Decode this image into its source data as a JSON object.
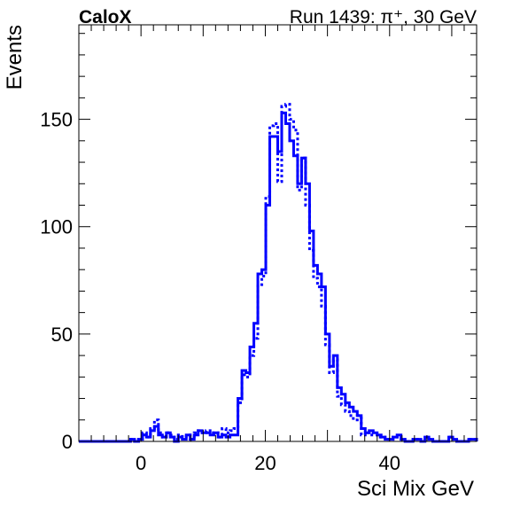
{
  "chart_data": {
    "type": "histogram",
    "title_left": "CaloX",
    "title_right": "Run 1439: π⁺, 30 GeV",
    "xlabel": "Sci Mix GeV",
    "ylabel": "Events",
    "xlim": [
      -10,
      54
    ],
    "ylim": [
      0,
      194
    ],
    "x_ticks": [
      0,
      20,
      40
    ],
    "y_ticks": [
      0,
      50,
      100,
      150
    ],
    "grid": false,
    "bin_width": 0.64,
    "colors": {
      "series": "#0000ff",
      "axes": "#000000"
    },
    "series": [
      {
        "style": "solid",
        "bins": [
          [
            -1.68,
            1
          ],
          [
            -1.04,
            0
          ],
          [
            -0.4,
            1
          ],
          [
            0.24,
            3
          ],
          [
            0.88,
            2
          ],
          [
            1.52,
            5
          ],
          [
            2.16,
            7
          ],
          [
            2.8,
            3
          ],
          [
            3.44,
            2
          ],
          [
            4.08,
            4
          ],
          [
            4.72,
            2
          ],
          [
            5.36,
            0
          ],
          [
            6.0,
            2
          ],
          [
            6.64,
            1
          ],
          [
            7.28,
            3
          ],
          [
            7.92,
            1
          ],
          [
            8.56,
            3
          ],
          [
            9.2,
            5
          ],
          [
            9.84,
            4
          ],
          [
            10.48,
            4
          ],
          [
            11.12,
            3
          ],
          [
            11.76,
            4
          ],
          [
            12.4,
            2
          ],
          [
            13.04,
            3
          ],
          [
            13.68,
            2
          ],
          [
            14.32,
            3
          ],
          [
            14.96,
            3
          ],
          [
            15.6,
            20
          ],
          [
            16.24,
            33
          ],
          [
            16.88,
            32
          ],
          [
            17.52,
            44
          ],
          [
            18.16,
            55
          ],
          [
            18.8,
            78
          ],
          [
            19.44,
            80
          ],
          [
            20.08,
            110
          ],
          [
            20.72,
            142
          ],
          [
            21.36,
            142
          ],
          [
            22.0,
            135
          ],
          [
            22.64,
            153
          ],
          [
            23.28,
            148
          ],
          [
            23.92,
            140
          ],
          [
            24.56,
            133
          ],
          [
            25.2,
            120
          ],
          [
            25.84,
            132
          ],
          [
            26.48,
            120
          ],
          [
            27.12,
            98
          ],
          [
            27.76,
            82
          ],
          [
            28.4,
            78
          ],
          [
            29.04,
            72
          ],
          [
            29.68,
            50
          ],
          [
            30.32,
            35
          ],
          [
            30.96,
            40
          ],
          [
            31.6,
            25
          ],
          [
            32.24,
            22
          ],
          [
            32.88,
            18
          ],
          [
            33.52,
            16
          ],
          [
            34.16,
            14
          ],
          [
            34.8,
            12
          ],
          [
            35.44,
            6
          ],
          [
            36.08,
            4
          ],
          [
            36.72,
            5
          ],
          [
            37.36,
            4
          ],
          [
            38.0,
            3
          ],
          [
            38.64,
            2
          ],
          [
            39.28,
            1
          ],
          [
            39.92,
            1
          ],
          [
            40.56,
            2
          ],
          [
            41.2,
            3
          ],
          [
            41.84,
            1
          ],
          [
            42.48,
            0
          ],
          [
            43.12,
            0
          ],
          [
            43.76,
            1
          ],
          [
            44.4,
            1
          ],
          [
            45.04,
            0
          ],
          [
            45.68,
            2
          ],
          [
            46.32,
            1
          ],
          [
            46.96,
            0
          ],
          [
            47.6,
            0
          ],
          [
            48.24,
            0
          ],
          [
            48.88,
            0
          ],
          [
            49.52,
            2
          ],
          [
            50.16,
            1
          ],
          [
            50.8,
            0
          ],
          [
            51.44,
            0
          ],
          [
            52.08,
            0
          ],
          [
            52.72,
            1
          ],
          [
            53.36,
            1
          ]
        ]
      },
      {
        "style": "dotted",
        "bins": [
          [
            -1.68,
            1
          ],
          [
            -1.04,
            0
          ],
          [
            -0.4,
            1
          ],
          [
            0.24,
            4
          ],
          [
            0.88,
            2
          ],
          [
            1.52,
            6
          ],
          [
            2.16,
            10
          ],
          [
            2.8,
            4
          ],
          [
            3.44,
            2
          ],
          [
            4.08,
            4
          ],
          [
            4.72,
            3
          ],
          [
            5.36,
            1
          ],
          [
            6.0,
            3
          ],
          [
            6.64,
            2
          ],
          [
            7.28,
            3
          ],
          [
            7.92,
            1
          ],
          [
            8.56,
            4
          ],
          [
            9.2,
            5
          ],
          [
            9.84,
            4
          ],
          [
            10.48,
            5
          ],
          [
            11.12,
            4
          ],
          [
            11.76,
            4
          ],
          [
            12.4,
            2
          ],
          [
            13.04,
            6
          ],
          [
            13.68,
            4
          ],
          [
            14.32,
            5
          ],
          [
            14.96,
            6
          ],
          [
            15.6,
            18
          ],
          [
            16.24,
            31
          ],
          [
            16.88,
            30
          ],
          [
            17.52,
            40
          ],
          [
            18.16,
            48
          ],
          [
            18.8,
            73
          ],
          [
            19.44,
            77
          ],
          [
            20.08,
            114
          ],
          [
            20.72,
            147
          ],
          [
            21.36,
            148
          ],
          [
            22.0,
            121
          ],
          [
            22.64,
            156
          ],
          [
            23.28,
            157
          ],
          [
            23.92,
            150
          ],
          [
            24.56,
            145
          ],
          [
            25.2,
            117
          ],
          [
            25.84,
            132
          ],
          [
            26.48,
            110
          ],
          [
            27.12,
            89
          ],
          [
            27.76,
            76
          ],
          [
            28.4,
            72
          ],
          [
            29.04,
            63
          ],
          [
            29.68,
            45
          ],
          [
            30.32,
            32
          ],
          [
            30.96,
            38
          ],
          [
            31.6,
            21
          ],
          [
            32.24,
            17
          ],
          [
            32.88,
            14
          ],
          [
            33.52,
            12
          ],
          [
            34.16,
            10
          ],
          [
            34.8,
            12
          ],
          [
            35.44,
            3
          ],
          [
            36.08,
            4
          ],
          [
            36.72,
            3
          ],
          [
            37.36,
            3
          ],
          [
            38.0,
            2
          ],
          [
            38.64,
            2
          ],
          [
            39.28,
            1
          ],
          [
            39.92,
            1
          ],
          [
            40.56,
            2
          ],
          [
            41.2,
            2
          ],
          [
            41.84,
            1
          ],
          [
            42.48,
            0
          ],
          [
            43.12,
            0
          ],
          [
            43.76,
            1
          ],
          [
            44.4,
            1
          ],
          [
            45.04,
            0
          ],
          [
            45.68,
            2
          ],
          [
            46.32,
            1
          ],
          [
            46.96,
            0
          ],
          [
            47.6,
            0
          ],
          [
            48.24,
            0
          ],
          [
            48.88,
            0
          ],
          [
            49.52,
            2
          ],
          [
            50.16,
            1
          ],
          [
            50.8,
            0
          ],
          [
            51.44,
            0
          ],
          [
            52.08,
            0
          ],
          [
            52.72,
            1
          ],
          [
            53.36,
            1
          ]
        ]
      }
    ]
  }
}
